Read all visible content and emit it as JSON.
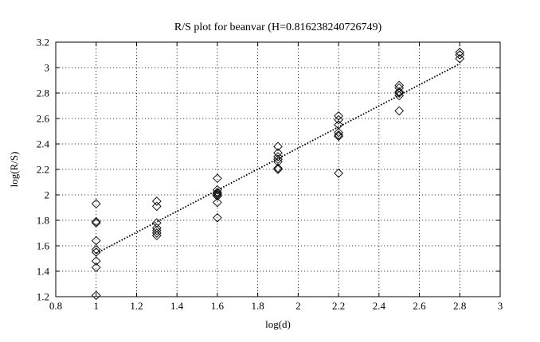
{
  "chart_data": {
    "type": "scatter",
    "title": "R/S plot for beanvar (H=0.816238240726749)",
    "xlabel": "log(d)",
    "ylabel": "log(R/S)",
    "xlim": [
      0.8,
      3.0
    ],
    "ylim": [
      1.2,
      3.2
    ],
    "xticks": [
      "0.8",
      "1",
      "1.2",
      "1.4",
      "1.6",
      "1.8",
      "2",
      "2.2",
      "2.4",
      "2.6",
      "2.8",
      "3"
    ],
    "yticks": [
      "1.2",
      "1.4",
      "1.6",
      "1.8",
      "2",
      "2.2",
      "2.4",
      "2.6",
      "2.8",
      "3",
      "3.2"
    ],
    "grid": true,
    "marker": "diamond",
    "series": [
      {
        "marker": "diamond",
        "points": [
          [
            1.0,
            1.93
          ],
          [
            1.0,
            1.79
          ],
          [
            1.0,
            1.78
          ],
          [
            1.0,
            1.64
          ],
          [
            1.0,
            1.57
          ],
          [
            1.0,
            1.55
          ],
          [
            1.0,
            1.48
          ],
          [
            1.0,
            1.43
          ],
          [
            1.0,
            1.21
          ],
          [
            1.3,
            1.95
          ],
          [
            1.3,
            1.91
          ],
          [
            1.3,
            1.78
          ],
          [
            1.3,
            1.74
          ],
          [
            1.3,
            1.72
          ],
          [
            1.3,
            1.7
          ],
          [
            1.3,
            1.68
          ],
          [
            1.6,
            2.13
          ],
          [
            1.6,
            2.04
          ],
          [
            1.6,
            2.02
          ],
          [
            1.6,
            2.01
          ],
          [
            1.6,
            2.0
          ],
          [
            1.6,
            1.99
          ],
          [
            1.6,
            1.94
          ],
          [
            1.6,
            1.82
          ],
          [
            1.9,
            2.38
          ],
          [
            1.9,
            2.33
          ],
          [
            1.9,
            2.3
          ],
          [
            1.9,
            2.28
          ],
          [
            1.9,
            2.26
          ],
          [
            1.9,
            2.21
          ],
          [
            1.9,
            2.2
          ],
          [
            2.2,
            2.62
          ],
          [
            2.2,
            2.59
          ],
          [
            2.2,
            2.55
          ],
          [
            2.2,
            2.49
          ],
          [
            2.2,
            2.47
          ],
          [
            2.2,
            2.46
          ],
          [
            2.2,
            2.17
          ],
          [
            2.5,
            2.86
          ],
          [
            2.5,
            2.84
          ],
          [
            2.5,
            2.81
          ],
          [
            2.5,
            2.8
          ],
          [
            2.5,
            2.78
          ],
          [
            2.5,
            2.66
          ],
          [
            2.8,
            3.12
          ],
          [
            2.8,
            3.1
          ],
          [
            2.8,
            3.07
          ]
        ]
      },
      {
        "line_style": "dotted",
        "points": [
          [
            1.0,
            1.54
          ],
          [
            2.8,
            3.03
          ]
        ]
      }
    ]
  }
}
